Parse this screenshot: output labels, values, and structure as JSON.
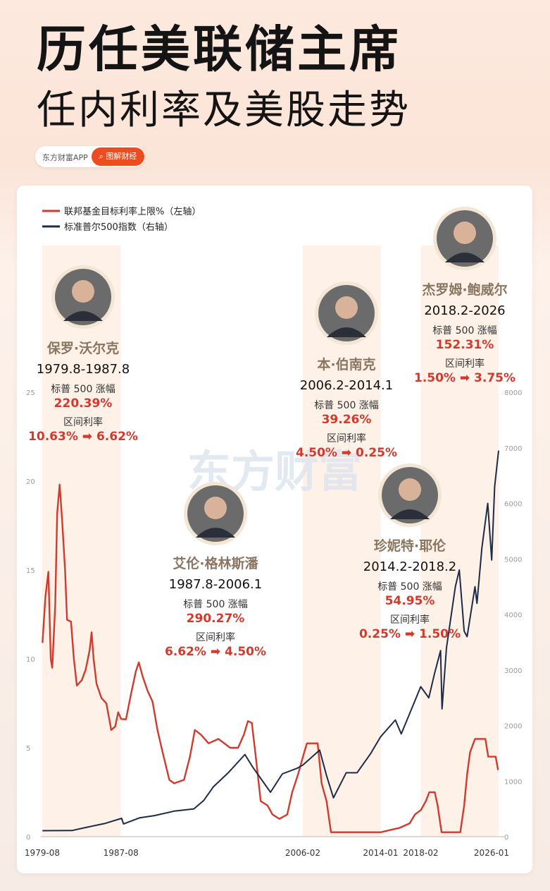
{
  "header": {
    "title_line1": "历任美联储主席",
    "title_line2": "任内利率及美股走势",
    "brand_name": "东方财富APP",
    "brand_tag": "图解财经",
    "watermark": "东方财富"
  },
  "colors": {
    "rate": "#d23a2e",
    "spx": "#1c2b4a",
    "accent": "#ee4c1e",
    "band": "#fdf1e8",
    "name": "#8a7560"
  },
  "chart_data": {
    "type": "line",
    "legend": [
      {
        "label": "联邦基金目标利率上限%（左轴）",
        "color": "#d23a2e"
      },
      {
        "label": "标准普尔500指数（右轴）",
        "color": "#1c2b4a"
      }
    ],
    "legend_position": "top-left",
    "grid": false,
    "left_axis": {
      "ticks": [
        0,
        5,
        10,
        15,
        20,
        25
      ],
      "range": [
        0,
        25
      ]
    },
    "right_axis": {
      "ticks": [
        0,
        1000,
        2000,
        3000,
        4000,
        5000,
        6000,
        7000,
        8000
      ],
      "range": [
        0,
        8000
      ]
    },
    "x_range": [
      1979.58,
      2026.0
    ],
    "x_tick_labels": [
      {
        "x": 1979.58,
        "label": "1979-08"
      },
      {
        "x": 1987.58,
        "label": "1987-08"
      },
      {
        "x": 2006.08,
        "label": "2006-02"
      },
      {
        "x": 2014.0,
        "label": "2014-01"
      },
      {
        "x": 2018.08,
        "label": "2018-02"
      },
      {
        "x": 2026.0,
        "label": "2026-01"
      }
    ],
    "series": [
      {
        "name": "联邦基金目标利率上限%（左轴）",
        "axis": "left",
        "points": [
          [
            1979.6,
            10.9
          ],
          [
            1979.9,
            13.5
          ],
          [
            1980.2,
            14.9
          ],
          [
            1980.45,
            10.0
          ],
          [
            1980.6,
            9.5
          ],
          [
            1980.9,
            13.0
          ],
          [
            1981.1,
            18.2
          ],
          [
            1981.35,
            19.8
          ],
          [
            1981.6,
            17.8
          ],
          [
            1981.9,
            15.0
          ],
          [
            1982.1,
            12.2
          ],
          [
            1982.5,
            12.1
          ],
          [
            1982.8,
            10.0
          ],
          [
            1983.1,
            8.5
          ],
          [
            1983.6,
            8.8
          ],
          [
            1984.0,
            9.4
          ],
          [
            1984.4,
            10.5
          ],
          [
            1984.6,
            11.5
          ],
          [
            1984.8,
            10.0
          ],
          [
            1985.1,
            8.6
          ],
          [
            1985.6,
            7.8
          ],
          [
            1986.1,
            7.5
          ],
          [
            1986.6,
            6.0
          ],
          [
            1987.0,
            6.2
          ],
          [
            1987.3,
            7.0
          ],
          [
            1987.6,
            6.62
          ],
          [
            1988.1,
            6.6
          ],
          [
            1988.6,
            8.0
          ],
          [
            1989.1,
            9.3
          ],
          [
            1989.4,
            9.8
          ],
          [
            1989.8,
            9.0
          ],
          [
            1990.3,
            8.2
          ],
          [
            1990.8,
            7.6
          ],
          [
            1991.3,
            6.0
          ],
          [
            1991.8,
            4.8
          ],
          [
            1992.5,
            3.2
          ],
          [
            1993.0,
            3.0
          ],
          [
            1994.0,
            3.2
          ],
          [
            1994.6,
            4.5
          ],
          [
            1995.1,
            6.0
          ],
          [
            1995.7,
            5.75
          ],
          [
            1996.5,
            5.25
          ],
          [
            1997.5,
            5.5
          ],
          [
            1998.7,
            5.0
          ],
          [
            1999.5,
            5.0
          ],
          [
            2000.1,
            5.75
          ],
          [
            2000.5,
            6.5
          ],
          [
            2000.9,
            6.4
          ],
          [
            2001.3,
            4.5
          ],
          [
            2001.8,
            2.0
          ],
          [
            2002.5,
            1.75
          ],
          [
            2003.0,
            1.25
          ],
          [
            2003.7,
            1.0
          ],
          [
            2004.5,
            1.25
          ],
          [
            2005.0,
            2.5
          ],
          [
            2005.6,
            3.5
          ],
          [
            2006.1,
            4.5
          ],
          [
            2006.5,
            5.25
          ],
          [
            2007.6,
            5.25
          ],
          [
            2008.0,
            3.0
          ],
          [
            2008.5,
            2.0
          ],
          [
            2008.95,
            0.25
          ],
          [
            2014.0,
            0.25
          ],
          [
            2015.95,
            0.5
          ],
          [
            2016.95,
            0.75
          ],
          [
            2017.5,
            1.25
          ],
          [
            2018.1,
            1.5
          ],
          [
            2018.6,
            2.0
          ],
          [
            2018.95,
            2.5
          ],
          [
            2019.5,
            2.5
          ],
          [
            2019.8,
            1.75
          ],
          [
            2020.2,
            0.25
          ],
          [
            2022.1,
            0.25
          ],
          [
            2022.5,
            1.75
          ],
          [
            2022.8,
            3.5
          ],
          [
            2023.1,
            4.75
          ],
          [
            2023.6,
            5.5
          ],
          [
            2024.65,
            5.5
          ],
          [
            2024.95,
            4.5
          ],
          [
            2025.7,
            4.5
          ],
          [
            2025.95,
            3.75
          ]
        ]
      },
      {
        "name": "标准普尔500指数（右轴）",
        "axis": "right",
        "points": [
          [
            1979.6,
            108
          ],
          [
            1982.6,
            110
          ],
          [
            1984.0,
            165
          ],
          [
            1986.0,
            240
          ],
          [
            1987.65,
            330
          ],
          [
            1987.85,
            230
          ],
          [
            1989.5,
            340
          ],
          [
            1991.0,
            380
          ],
          [
            1993.0,
            460
          ],
          [
            1995.0,
            500
          ],
          [
            1996.0,
            650
          ],
          [
            1997.0,
            900
          ],
          [
            1998.5,
            1150
          ],
          [
            2000.2,
            1480
          ],
          [
            2001.0,
            1250
          ],
          [
            2002.8,
            800
          ],
          [
            2004.0,
            1130
          ],
          [
            2005.5,
            1230
          ],
          [
            2006.1,
            1290
          ],
          [
            2007.8,
            1560
          ],
          [
            2008.5,
            1100
          ],
          [
            2009.2,
            700
          ],
          [
            2010.5,
            1150
          ],
          [
            2011.6,
            1150
          ],
          [
            2013.0,
            1500
          ],
          [
            2014.0,
            1800
          ],
          [
            2015.5,
            2100
          ],
          [
            2016.1,
            1850
          ],
          [
            2017.5,
            2450
          ],
          [
            2018.08,
            2700
          ],
          [
            2018.9,
            2500
          ],
          [
            2019.5,
            2950
          ],
          [
            2020.1,
            3350
          ],
          [
            2020.25,
            2300
          ],
          [
            2020.7,
            3400
          ],
          [
            2021.6,
            4500
          ],
          [
            2022.0,
            4800
          ],
          [
            2022.5,
            3700
          ],
          [
            2022.8,
            3600
          ],
          [
            2023.6,
            4500
          ],
          [
            2023.8,
            4200
          ],
          [
            2024.3,
            5200
          ],
          [
            2024.9,
            6000
          ],
          [
            2025.3,
            4980
          ],
          [
            2025.6,
            6300
          ],
          [
            2026.0,
            6950
          ]
        ]
      }
    ],
    "chairs": [
      {
        "name": "保罗·沃尔克",
        "term": "1979.8-1987.8",
        "start": 1979.58,
        "end": 1987.58,
        "gain_label": "标普 500 涨幅",
        "gain": "220.39%",
        "rate_label": "区间利率",
        "rate_change": "10.63% ➡ 6.62%",
        "shaded": true
      },
      {
        "name": "艾伦·格林斯潘",
        "term": "1987.8-2006.1",
        "start": 1987.58,
        "end": 2006.08,
        "gain_label": "标普 500 涨幅",
        "gain": "290.27%",
        "rate_label": "区间利率",
        "rate_change": "6.62% ➡ 4.50%",
        "shaded": false
      },
      {
        "name": "本·伯南克",
        "term": "2006.2-2014.1",
        "start": 2006.08,
        "end": 2014.0,
        "gain_label": "标普 500 涨幅",
        "gain": "39.26%",
        "rate_label": "区间利率",
        "rate_change": "4.50% ➡ 0.25%",
        "shaded": true
      },
      {
        "name": "珍妮特·耶伦",
        "term": "2014.2-2018.2",
        "start": 2014.0,
        "end": 2018.08,
        "gain_label": "标普 500 涨幅",
        "gain": "54.95%",
        "rate_label": "区间利率",
        "rate_change": "0.25% ➡ 1.50%",
        "shaded": false
      },
      {
        "name": "杰罗姆·鲍威尔",
        "term": "2018.2-2026",
        "start": 2018.08,
        "end": 2026.0,
        "gain_label": "标普 500 涨幅",
        "gain": "152.31%",
        "rate_label": "区间利率",
        "rate_change": "1.50% ➡ 3.75%",
        "shaded": true
      }
    ]
  }
}
